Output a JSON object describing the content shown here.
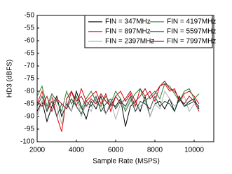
{
  "chart_data": {
    "type": "line",
    "x_label": "Sample Rate (MSPS)",
    "y_label": "HD3 (dBFS)",
    "xlim": [
      2000,
      11000
    ],
    "ylim": [
      -100,
      -50
    ],
    "xticks": [
      2000,
      4000,
      6000,
      8000,
      10000
    ],
    "yticks": [
      -100,
      -95,
      -90,
      -85,
      -80,
      -75,
      -70,
      -65,
      -60,
      -55,
      -50
    ],
    "grid": false,
    "legend": "top-right",
    "x": [
      2000,
      2250,
      2500,
      2750,
      3000,
      3250,
      3500,
      3750,
      4000,
      4250,
      4500,
      4750,
      5000,
      5250,
      5500,
      5750,
      6000,
      6250,
      6500,
      6750,
      7000,
      7250,
      7500,
      7750,
      8000,
      8250,
      8500,
      8750,
      9000,
      9250,
      9500,
      9750,
      10000,
      10250
    ],
    "series": [
      {
        "name": "FIN = 347MHz",
        "color": "#000000",
        "values": [
          -88,
          -84,
          -92,
          -86,
          -82,
          -90,
          -85,
          -88,
          -80,
          -86,
          -91,
          -84,
          -87,
          -82,
          -89,
          -85,
          -86,
          -83,
          -94,
          -86,
          -84,
          -88,
          -82,
          -90,
          -85,
          -84,
          -87,
          -83,
          -88,
          -82,
          -86,
          -84,
          -83,
          -87
        ]
      },
      {
        "name": "FIN = 897MHz",
        "color": "#e00000",
        "values": [
          -85,
          -80,
          -88,
          -82,
          -90,
          -96,
          -83,
          -80,
          -86,
          -79,
          -84,
          -82,
          -80,
          -85,
          -81,
          -88,
          -82,
          -80,
          -84,
          -81,
          -86,
          -79,
          -82,
          -80,
          -84,
          -78,
          -77,
          -80,
          -79,
          -84,
          -81,
          -80,
          -82,
          -85
        ]
      },
      {
        "name": "FIN = 2397MHz",
        "color": "#b0b0b0",
        "values": [
          -90,
          -84,
          -87,
          -82,
          -86,
          -93,
          -84,
          -88,
          -82,
          -90,
          -85,
          -88,
          -83,
          -86,
          -89,
          -84,
          -91,
          -85,
          -87,
          -83,
          -88,
          -86,
          -84,
          -90,
          -85,
          -87,
          -80,
          -83,
          -86,
          -84,
          -82,
          -88,
          -85,
          -86
        ]
      },
      {
        "name": "FIN = 4197MHz",
        "color": "#2e7d32",
        "values": [
          -82,
          -78,
          -86,
          -81,
          -84,
          -88,
          -80,
          -85,
          -82,
          -87,
          -83,
          -80,
          -84,
          -86,
          -82,
          -85,
          -80,
          -83,
          -88,
          -84,
          -81,
          -79,
          -84,
          -82,
          -80,
          -83,
          -77,
          -78,
          -81,
          -84,
          -80,
          -79,
          -83,
          -81
        ]
      },
      {
        "name": "FIN = 5597MHz",
        "color": "#1f4f3f",
        "values": [
          -86,
          -82,
          -88,
          -84,
          -90,
          -85,
          -87,
          -83,
          -86,
          -89,
          -84,
          -86,
          -82,
          -88,
          -85,
          -83,
          -87,
          -84,
          -86,
          -82,
          -88,
          -84,
          -85,
          -87,
          -82,
          -86,
          -84,
          -85,
          -88,
          -83,
          -86,
          -85,
          -84,
          -86
        ]
      },
      {
        "name": "FIN = 7997MHz",
        "color": "#a0102a",
        "values": [
          -84,
          -86,
          -82,
          -88,
          -83,
          -85,
          -87,
          -80,
          -84,
          -82,
          -86,
          -83,
          -85,
          -81,
          -84,
          -86,
          -82,
          -85,
          -83,
          -80,
          -84,
          -82,
          -79,
          -83,
          -81,
          -78,
          -76,
          -79,
          -80,
          -83,
          -85,
          -82,
          -84,
          -88
        ]
      }
    ]
  }
}
